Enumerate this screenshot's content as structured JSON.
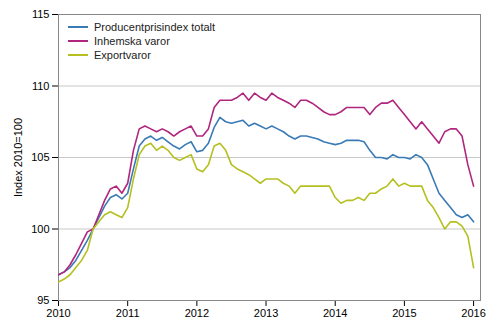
{
  "chart_data": {
    "type": "line",
    "ylabel": "Index 2010=100",
    "x": [
      2010,
      2010.0833333333,
      2010.1666666667,
      2010.25,
      2010.3333333333,
      2010.4166666667,
      2010.5,
      2010.5833333333,
      2010.6666666667,
      2010.75,
      2010.8333333333,
      2010.9166666667,
      2011,
      2011.0833333333,
      2011.1666666667,
      2011.25,
      2011.3333333333,
      2011.4166666667,
      2011.5,
      2011.5833333333,
      2011.6666666667,
      2011.75,
      2011.8333333333,
      2011.9166666667,
      2012,
      2012.0833333333,
      2012.1666666667,
      2012.25,
      2012.3333333333,
      2012.4166666667,
      2012.5,
      2012.5833333333,
      2012.6666666667,
      2012.75,
      2012.8333333333,
      2012.9166666667,
      2013,
      2013.0833333333,
      2013.1666666667,
      2013.25,
      2013.3333333333,
      2013.4166666667,
      2013.5,
      2013.5833333333,
      2013.6666666667,
      2013.75,
      2013.8333333333,
      2013.9166666667,
      2014,
      2014.0833333333,
      2014.1666666667,
      2014.25,
      2014.3333333333,
      2014.4166666667,
      2014.5,
      2014.5833333333,
      2014.6666666667,
      2014.75,
      2014.8333333333,
      2014.9166666667,
      2015,
      2015.0833333333,
      2015.1666666667,
      2015.25,
      2015.3333333333,
      2015.4166666667,
      2015.5,
      2015.5833333333,
      2015.6666666667,
      2015.75,
      2015.8333333333,
      2015.9166666667,
      2016
    ],
    "series": [
      {
        "name": "Producentprisindex totalt",
        "color": "#3a7ab5",
        "values": [
          96.8,
          97.0,
          97.3,
          97.8,
          98.5,
          99.2,
          100.0,
          100.8,
          101.6,
          102.2,
          102.4,
          102.1,
          102.5,
          104.2,
          105.8,
          106.3,
          106.5,
          106.2,
          106.4,
          106.1,
          105.8,
          105.6,
          105.9,
          106.1,
          105.4,
          105.5,
          106.0,
          107.1,
          107.8,
          107.5,
          107.4,
          107.5,
          107.6,
          107.2,
          107.4,
          107.2,
          107.0,
          107.2,
          107.0,
          106.8,
          106.5,
          106.3,
          106.5,
          106.5,
          106.4,
          106.3,
          106.1,
          106.0,
          105.9,
          106.0,
          106.2,
          106.2,
          106.2,
          106.1,
          105.5,
          105.0,
          105.0,
          104.9,
          105.2,
          105.0,
          105.0,
          104.9,
          105.2,
          105.0,
          104.5,
          103.5,
          102.5,
          102.0,
          101.5,
          101.0,
          100.8,
          101.0,
          100.5
        ]
      },
      {
        "name": "Inhemska varor",
        "color": "#b0267e",
        "values": [
          96.8,
          97.0,
          97.5,
          98.2,
          99.0,
          99.8,
          100.0,
          101.0,
          102.0,
          102.8,
          103.0,
          102.5,
          103.2,
          105.5,
          107.0,
          107.2,
          107.0,
          106.8,
          107.0,
          106.8,
          106.5,
          106.8,
          107.0,
          107.2,
          106.5,
          106.5,
          107.0,
          108.5,
          109.0,
          109.0,
          109.0,
          109.2,
          109.5,
          109.0,
          109.5,
          109.2,
          109.0,
          109.5,
          109.2,
          109.0,
          108.8,
          108.5,
          109.0,
          109.0,
          108.8,
          108.5,
          108.2,
          108.0,
          108.0,
          108.2,
          108.5,
          108.5,
          108.5,
          108.5,
          108.0,
          108.5,
          108.8,
          108.8,
          109.0,
          108.5,
          108.0,
          107.5,
          107.0,
          107.5,
          107.0,
          106.5,
          106.0,
          106.8,
          107.0,
          107.0,
          106.5,
          104.5,
          103.0
        ]
      },
      {
        "name": "Exportvaror",
        "color": "#b5c020",
        "values": [
          96.3,
          96.5,
          96.8,
          97.3,
          97.8,
          98.5,
          100.0,
          100.5,
          101.0,
          101.2,
          101.0,
          100.8,
          101.5,
          103.5,
          105.2,
          105.8,
          106.0,
          105.5,
          105.8,
          105.5,
          105.0,
          104.8,
          105.0,
          105.2,
          104.2,
          104.0,
          104.5,
          105.8,
          106.0,
          105.5,
          104.5,
          104.2,
          104.0,
          103.8,
          103.5,
          103.2,
          103.5,
          103.5,
          103.5,
          103.2,
          103.0,
          102.5,
          103.0,
          103.0,
          103.0,
          103.0,
          103.0,
          103.0,
          102.2,
          101.8,
          102.0,
          102.0,
          102.2,
          102.0,
          102.5,
          102.5,
          102.8,
          103.0,
          103.5,
          103.0,
          103.2,
          103.0,
          103.0,
          103.0,
          102.0,
          101.5,
          100.8,
          100.0,
          100.5,
          100.5,
          100.2,
          99.5,
          97.3
        ]
      }
    ],
    "xlim": [
      2010.0,
      2016.1
    ],
    "xticks": [
      2010,
      2011,
      2012,
      2013,
      2014,
      2015,
      2016
    ],
    "ylim": [
      95,
      115
    ],
    "yticks": [
      95,
      100,
      105,
      110,
      115
    ],
    "grid": true,
    "legend": "upper left"
  }
}
